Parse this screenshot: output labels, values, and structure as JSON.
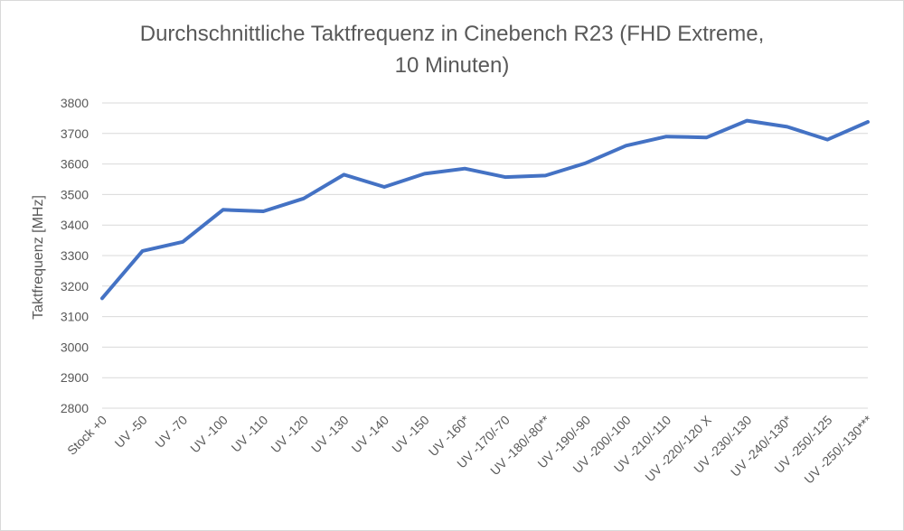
{
  "chart_data": {
    "type": "line",
    "title_line1": "Durchschnittliche Taktfrequenz in Cinebench  R23 (FHD Extreme,",
    "title_line2": "10 Minuten)",
    "xlabel": "",
    "ylabel": "Taktfrequenz [MHz]",
    "ylim": [
      2800,
      3800
    ],
    "yticks": [
      2800,
      2900,
      3000,
      3100,
      3200,
      3300,
      3400,
      3500,
      3600,
      3700,
      3800
    ],
    "grid": true,
    "legend": "none",
    "categories": [
      "Stock +0",
      "UV -50",
      "UV -70",
      "UV -100",
      "UV -110",
      "UV -120",
      "UV -130",
      "UV -140",
      "UV -150",
      "UV -160*",
      "UV -170/-70",
      "UV -180/-80**",
      "UV -190/-90",
      "UV -200/-100",
      "UV -210/-110",
      "UV -220/-120 X",
      "UV -230/-130",
      "UV -240/-130*",
      "UV -250/-125",
      "UV -250/-130***"
    ],
    "series": [
      {
        "color": "#4472c4",
        "values": [
          3160,
          3315,
          3345,
          3450,
          3445,
          3487,
          3565,
          3525,
          3568,
          3585,
          3557,
          3562,
          3603,
          3660,
          3690,
          3687,
          3742,
          3722,
          3680,
          3738
        ]
      }
    ]
  },
  "colors": {
    "grid": "#d9d9d9",
    "text": "#595959",
    "line": "#4472c4"
  }
}
